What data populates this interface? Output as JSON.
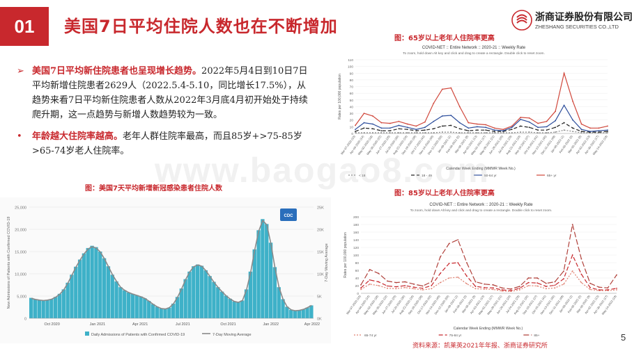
{
  "header": {
    "badge": "01",
    "title": "美国7日平均住院人数也在不断增加"
  },
  "logo": {
    "name_cn": "浙商证券股份有限公司",
    "name_en": "ZHESHANG SECURITIES CO.,LTD"
  },
  "watermark": "www.baogao8.com",
  "bullets": [
    {
      "marker": "➢",
      "highlight": "美国7日平均新住院患者也呈现增长趋势。",
      "text": "2022年5月4日到10日7日平均新增住院患者2629人（2022.5.4-5.10，同比增长17.5%），从趋势来看7日平均新住院患者人数从2022年3月底4月初开始处于持续爬升期，这一点趋势与新增人数趋势较为一致。"
    },
    {
      "marker": "•",
      "highlight": "年龄越大住院率越高。",
      "text": "老年人群住院率最高，而且85岁+>75-85岁>65-74岁老人住院率。"
    }
  ],
  "captions": {
    "chart1": "图：美国7天平均新增新冠感染患者住院人数",
    "chart2": "图：65岁以上老年人住院率更高",
    "chart3": "图：85岁以上老年人住院率更高"
  },
  "source": "资料来源：凯莱英2021年年报、浙商证券研究所",
  "page_number": "5",
  "colors": {
    "accent": "#c8282d",
    "bar": "#3eb1c8",
    "avg": "#8a8a8a",
    "cdc_badge": "#2a6ebb"
  },
  "chart_data": [
    {
      "type": "area",
      "title": "",
      "badge_text": "CDC",
      "ylabel_left": "New Admissions of Patients with Confirmed COVID-19",
      "ylabel_right": "7-Day Moving Average",
      "yticks_left": [
        "0",
        "5,000",
        "10,000",
        "15,000",
        "20,000",
        "25,000"
      ],
      "yticks_right": [
        "0K",
        "5K",
        "10K",
        "15K",
        "20K",
        "25K"
      ],
      "ylim": [
        0,
        25000
      ],
      "x_ticks": [
        {
          "label": "Oct 2020",
          "pos": 0.08
        },
        {
          "label": "Jan 2021",
          "pos": 0.24
        },
        {
          "label": "Apr 2021",
          "pos": 0.39
        },
        {
          "label": "Jul 2021",
          "pos": 0.54
        },
        {
          "label": "Oct 2021",
          "pos": 0.7
        },
        {
          "label": "Jan 2022",
          "pos": 0.85
        },
        {
          "label": "Apr 2022",
          "pos": 0.995
        }
      ],
      "daily_values": [
        4600,
        4300,
        4100,
        4000,
        4100,
        4300,
        4800,
        5500,
        6500,
        8000,
        9800,
        11600,
        13200,
        14600,
        15800,
        16300,
        16000,
        15000,
        13500,
        11700,
        9800,
        8300,
        7000,
        6300,
        5800,
        5500,
        5200,
        4900,
        4500,
        3900,
        3200,
        2600,
        2200,
        2100,
        2400,
        3300,
        4800,
        6700,
        8800,
        10500,
        11700,
        12100,
        11800,
        10800,
        9500,
        8200,
        7000,
        6000,
        5100,
        4400,
        3800,
        3600,
        4000,
        6500,
        10500,
        15500,
        19800,
        22300,
        21200,
        17000,
        11500,
        7000,
        4300,
        2600,
        1900,
        1700,
        1800,
        2000,
        2400,
        2900
      ],
      "moving_avg": [
        4500,
        4250,
        4100,
        4000,
        4100,
        4300,
        4750,
        5400,
        6400,
        7900,
        9700,
        11500,
        13100,
        14500,
        15600,
        16100,
        15800,
        14900,
        13400,
        11600,
        9800,
        8300,
        7000,
        6300,
        5800,
        5450,
        5150,
        4850,
        4450,
        3850,
        3150,
        2600,
        2200,
        2100,
        2400,
        3250,
        4700,
        6600,
        8700,
        10400,
        11600,
        12000,
        11700,
        10700,
        9400,
        8100,
        6950,
        5950,
        5050,
        4350,
        3800,
        3600,
        4000,
        6400,
        10300,
        15300,
        19600,
        22000,
        21000,
        16800,
        11400,
        6950,
        4250,
        2600,
        1900,
        1700,
        1800,
        2000,
        2400,
        2900
      ],
      "legend": [
        "Daily Admissions of Patients with Confirmed COVID-19",
        "7-Day Moving Average"
      ]
    },
    {
      "type": "line",
      "title": "COVID-NET :: Entire Network :: 2020-21 :: Weekly Rate",
      "subtitle": "To zoom, hold down Alt key and click and drag to create a rectangle. Double click to reset zoom.",
      "ylabel": "Rates per 100,000 population",
      "xlabel": "Calendar Week Ending (MMWR Week No.)",
      "ylim": [
        0,
        110
      ],
      "yticks": [
        "0",
        "10",
        "20",
        "30",
        "40",
        "50",
        "60",
        "70",
        "80",
        "90",
        "100",
        "110"
      ],
      "x_labels": [
        "Mar-07-2020 (10)",
        "Apr-04-2020 (14)",
        "May-02-2020 (18)",
        "May-30-2020 (22)",
        "Jun-27-2020 (26)",
        "Jul-25-2020 (30)",
        "Aug-22-2020 (34)",
        "Sep-19-2020 (38)",
        "Oct-17-2020 (42)",
        "Nov-14-2020 (46)",
        "Dec-12-2020 (50)",
        "Jan-09-2021 (1)",
        "Feb-06-2021 (5)",
        "Mar-06-2021 (9)",
        "Apr-03-2021 (13)",
        "May-01-2021 (17)",
        "May-29-2021 (21)",
        "Jun-26-2021 (25)",
        "Jul-24-2021 (29)",
        "Aug-21-2021 (33)",
        "Sep-18-2021 (37)",
        "Oct-16-2021 (41)",
        "Nov-13-2021 (45)",
        "Dec-11-2021 (49)",
        "Jan-08-2022 (1)",
        "Feb-05-2022 (5)",
        "Mar-05-2022 (9)",
        "Apr-02-2022 (13)",
        "Apr-30-2022 (17)",
        "May-14-2022 (19)"
      ],
      "legend_position": "bottom",
      "series": [
        {
          "name": "< 18",
          "color": "#888888",
          "dash": "2,2",
          "values": [
            1,
            1,
            1,
            1,
            1,
            1,
            1,
            1,
            1,
            1,
            2,
            2,
            1,
            1,
            1,
            1,
            1,
            1,
            1,
            2,
            2,
            1,
            1,
            2,
            5,
            3,
            1,
            1,
            1,
            1
          ]
        },
        {
          "name": "18 - 49",
          "color": "#222222",
          "dash": "5,3",
          "values": [
            3,
            8,
            7,
            4,
            4,
            7,
            6,
            4,
            5,
            7,
            11,
            12,
            7,
            4,
            5,
            5,
            3,
            3,
            6,
            11,
            9,
            5,
            5,
            9,
            16,
            8,
            3,
            2,
            2,
            3
          ]
        },
        {
          "name": "50-64 yr",
          "color": "#2d4e9c",
          "dash": "",
          "values": [
            6,
            16,
            14,
            8,
            8,
            12,
            9,
            6,
            9,
            18,
            26,
            27,
            16,
            8,
            10,
            9,
            5,
            4,
            9,
            21,
            17,
            9,
            10,
            19,
            42,
            20,
            6,
            3,
            4,
            5
          ]
        },
        {
          "name": "65+ yr",
          "color": "#d0463a",
          "dash": "",
          "values": [
            12,
            30,
            26,
            16,
            15,
            18,
            14,
            11,
            17,
            45,
            66,
            68,
            40,
            16,
            14,
            13,
            8,
            6,
            11,
            24,
            23,
            15,
            18,
            33,
            90,
            48,
            14,
            8,
            8,
            11
          ]
        }
      ]
    },
    {
      "type": "line",
      "title": "COVID-NET :: Entire Network :: 2020-21 :: Weekly Rate",
      "subtitle": "To zoom, hold down Alt key and click and drag to create a rectangle. Double click to reset zoom.",
      "ylabel": "Rates per 100,000 population",
      "xlabel": "Calendar Week Ending (MMWR Week No.)",
      "ylim": [
        0,
        200
      ],
      "yticks": [
        "0",
        "20",
        "40",
        "60",
        "80",
        "100",
        "120",
        "140",
        "160",
        "180",
        "200"
      ],
      "x_labels": [
        "Mar-07-2020 (10)",
        "Apr-04-2020 (14)",
        "May-02-2020 (18)",
        "May-30-2020 (22)",
        "Jun-27-2020 (26)",
        "Jul-25-2020 (30)",
        "Aug-22-2020 (34)",
        "Sep-19-2020 (38)",
        "Oct-17-2020 (42)",
        "Nov-14-2020 (46)",
        "Dec-12-2020 (50)",
        "Jan-09-2021 (1)",
        "Feb-06-2021 (5)",
        "Mar-06-2021 (9)",
        "Apr-03-2021 (13)",
        "May-01-2021 (17)",
        "May-29-2021 (21)",
        "Jun-26-2021 (25)",
        "Jul-24-2021 (29)",
        "Aug-21-2021 (33)",
        "Sep-18-2021 (37)",
        "Oct-16-2021 (41)",
        "Nov-13-2021 (45)",
        "Dec-11-2021 (49)",
        "Jan-08-2022 (1)",
        "Feb-05-2022 (5)",
        "Mar-05-2022 (9)",
        "Apr-02-2022 (13)",
        "Apr-30-2022 (17)",
        "May-14-2022 (19)"
      ],
      "legend_position": "bottom",
      "series": [
        {
          "name": "65-74 yr",
          "color": "#e08070",
          "dash": "2,2",
          "values": [
            10,
            24,
            20,
            13,
            12,
            15,
            12,
            9,
            12,
            28,
            40,
            42,
            25,
            12,
            11,
            10,
            6,
            5,
            9,
            20,
            19,
            12,
            14,
            24,
            58,
            28,
            10,
            7,
            7,
            9
          ]
        },
        {
          "name": "75-84 yr",
          "color": "#c8282d",
          "dash": "6,3",
          "values": [
            14,
            35,
            30,
            19,
            17,
            20,
            16,
            13,
            20,
            52,
            78,
            80,
            45,
            18,
            15,
            14,
            9,
            7,
            13,
            28,
            27,
            18,
            21,
            38,
            100,
            50,
            15,
            9,
            9,
            13
          ]
        },
        {
          "name": "85+",
          "color": "#b0403a",
          "dash": "8,3",
          "values": [
            22,
            62,
            52,
            32,
            28,
            30,
            24,
            19,
            30,
            95,
            130,
            140,
            80,
            30,
            24,
            22,
            14,
            11,
            18,
            40,
            40,
            26,
            30,
            58,
            180,
            90,
            26,
            16,
            14,
            48
          ]
        }
      ]
    }
  ]
}
